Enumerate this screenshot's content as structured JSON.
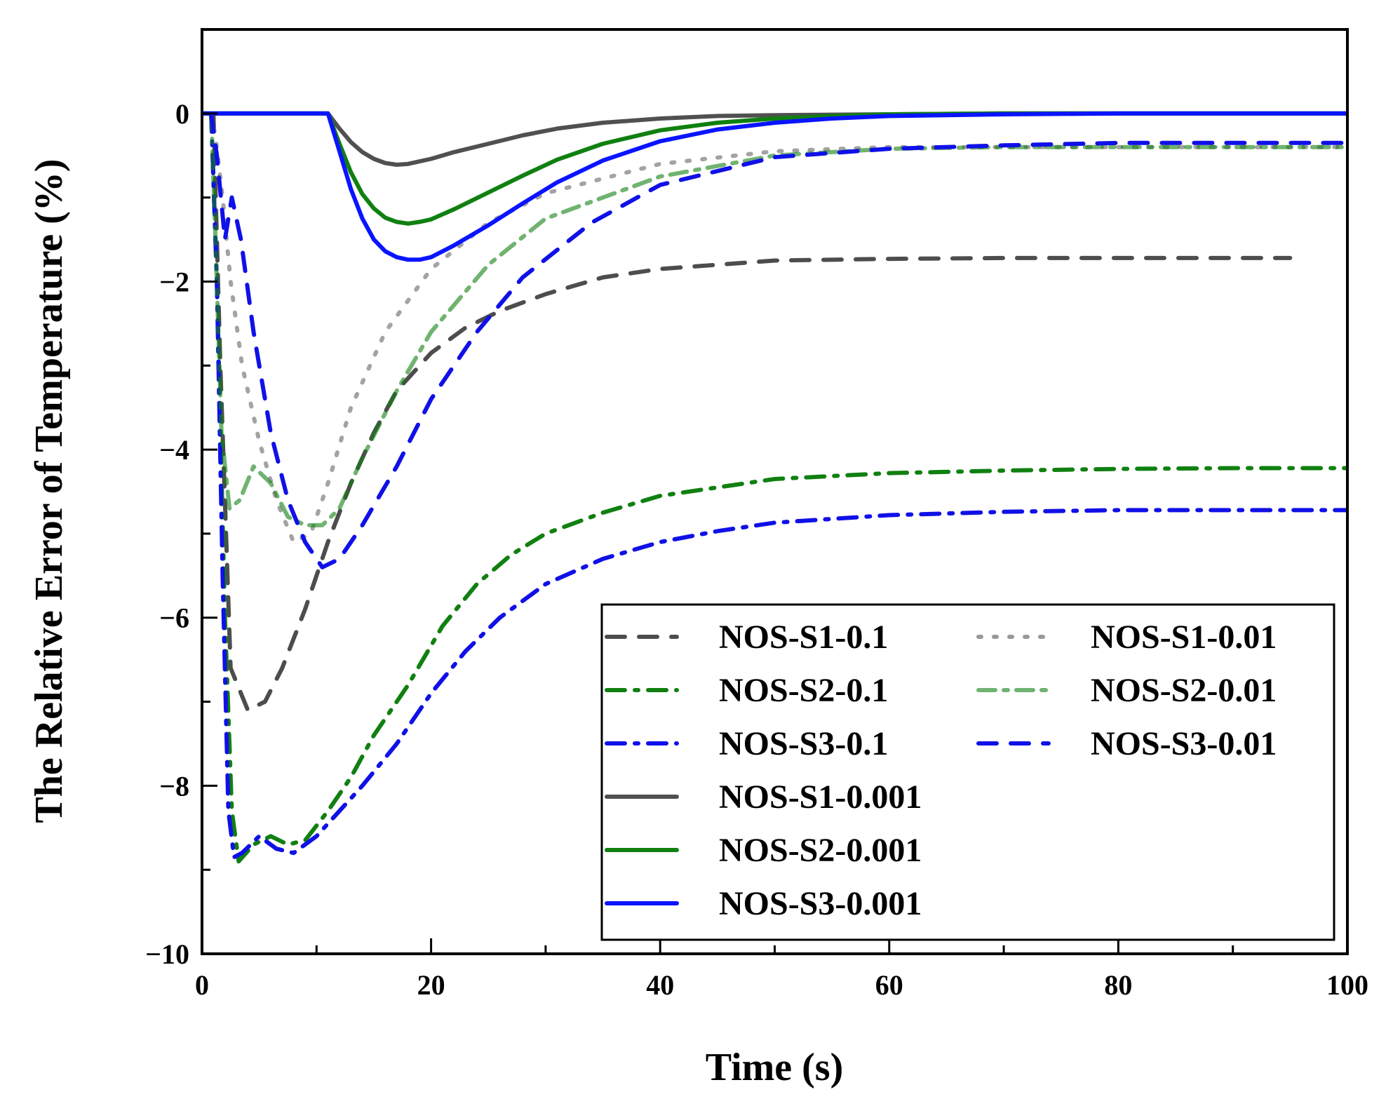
{
  "chart_data": {
    "type": "line",
    "title": "",
    "xlabel": "Time (s)",
    "ylabel": "The Relative Error of  Temperature (%)",
    "xlim": [
      0,
      100
    ],
    "ylim": [
      -10,
      1
    ],
    "xticks": [
      0,
      20,
      40,
      60,
      80,
      100
    ],
    "xtick_labels": [
      "0",
      "20",
      "40",
      "60",
      "80",
      "100"
    ],
    "yticks": [
      0,
      -2,
      -4,
      -6,
      -8,
      -10
    ],
    "ytick_labels": [
      "0",
      "−2",
      "−4",
      "−6",
      "−8",
      "−10"
    ],
    "grid": false,
    "legend_position": "bottom-right",
    "series": [
      {
        "name": "NOS-S1-0.1",
        "color": "#4d4d4d",
        "style": "dash",
        "width": 6,
        "x": [
          1,
          1.6,
          2.5,
          4,
          5.5,
          7,
          9,
          11,
          13,
          15,
          17,
          20,
          23,
          26,
          30,
          35,
          40,
          50,
          60,
          70,
          80,
          95
        ],
        "y": [
          0,
          -3,
          -6.6,
          -7.1,
          -7.0,
          -6.6,
          -5.9,
          -5.1,
          -4.4,
          -3.8,
          -3.3,
          -2.85,
          -2.55,
          -2.35,
          -2.15,
          -1.95,
          -1.85,
          -1.75,
          -1.73,
          -1.72,
          -1.72,
          -1.72
        ]
      },
      {
        "name": "NOS-S2-0.1",
        "color": "#108010",
        "style": "dashdot",
        "width": 6,
        "x": [
          0.8,
          1.3,
          2,
          2.6,
          3.2,
          4.5,
          6,
          7.5,
          9,
          11,
          13,
          15,
          18,
          21,
          24,
          27,
          30,
          35,
          40,
          45,
          50,
          60,
          70,
          80,
          90,
          100
        ],
        "y": [
          0,
          -2,
          -6,
          -8.3,
          -8.9,
          -8.7,
          -8.6,
          -8.7,
          -8.65,
          -8.3,
          -7.9,
          -7.4,
          -6.8,
          -6.1,
          -5.6,
          -5.25,
          -5.0,
          -4.75,
          -4.55,
          -4.45,
          -4.35,
          -4.28,
          -4.25,
          -4.23,
          -4.22,
          -4.22
        ]
      },
      {
        "name": "NOS-S3-0.1",
        "color": "#1010e8",
        "style": "dashdot",
        "width": 6,
        "x": [
          0.8,
          1.3,
          1.8,
          2.3,
          2.8,
          3.5,
          5,
          6.5,
          8,
          10,
          12,
          14,
          17,
          20,
          23,
          26,
          30,
          35,
          40,
          45,
          50,
          60,
          70,
          80,
          90,
          100
        ],
        "y": [
          0,
          -2,
          -5.5,
          -8.3,
          -8.85,
          -8.8,
          -8.6,
          -8.75,
          -8.8,
          -8.6,
          -8.3,
          -8.0,
          -7.5,
          -6.9,
          -6.4,
          -6.0,
          -5.6,
          -5.3,
          -5.1,
          -4.97,
          -4.87,
          -4.78,
          -4.74,
          -4.72,
          -4.72,
          -4.72
        ]
      },
      {
        "name": "NOS-S1-0.01",
        "color": "#999999",
        "style": "dot",
        "width": 6,
        "x": [
          0.8,
          1.2,
          1.8,
          2.5,
          3.5,
          5,
          6.5,
          8,
          9.5,
          11,
          13,
          16,
          20,
          25,
          30,
          40,
          50,
          60,
          70,
          80,
          90,
          100
        ],
        "y": [
          0,
          -0.3,
          -1.0,
          -2.0,
          -3.0,
          -3.9,
          -4.6,
          -5.1,
          -5.0,
          -4.4,
          -3.5,
          -2.6,
          -1.85,
          -1.3,
          -0.95,
          -0.6,
          -0.45,
          -0.4,
          -0.4,
          -0.4,
          -0.4,
          -0.4
        ]
      },
      {
        "name": "NOS-S2-0.01",
        "color": "#108010",
        "style": "dashdot-light",
        "width": 6,
        "x": [
          0.8,
          1.2,
          1.7,
          2.4,
          3.3,
          4.5,
          6,
          7.5,
          9,
          10.5,
          12,
          14,
          17,
          20,
          25,
          30,
          40,
          50,
          60,
          70,
          80,
          90,
          100
        ],
        "y": [
          0,
          -1.6,
          -3.8,
          -4.7,
          -4.6,
          -4.2,
          -4.4,
          -4.8,
          -4.9,
          -4.9,
          -4.7,
          -4.1,
          -3.3,
          -2.6,
          -1.8,
          -1.25,
          -0.75,
          -0.5,
          -0.42,
          -0.4,
          -0.4,
          -0.4,
          -0.4
        ]
      },
      {
        "name": "NOS-S3-0.01",
        "color": "#1010e8",
        "style": "dash",
        "width": 6,
        "x": [
          0.8,
          1.3,
          2.0,
          2.6,
          3.4,
          4.5,
          6,
          7.5,
          9,
          10.5,
          12,
          14,
          17,
          20,
          24,
          28,
          34,
          40,
          50,
          60,
          70,
          80,
          90,
          100
        ],
        "y": [
          0,
          -0.5,
          -1.5,
          -1.0,
          -1.5,
          -2.6,
          -3.8,
          -4.6,
          -5.1,
          -5.4,
          -5.3,
          -4.9,
          -4.2,
          -3.4,
          -2.6,
          -1.95,
          -1.3,
          -0.85,
          -0.52,
          -0.42,
          -0.38,
          -0.35,
          -0.35,
          -0.35
        ]
      },
      {
        "name": "NOS-S1-0.001",
        "color": "#505050",
        "style": "solid",
        "width": 6,
        "x": [
          0,
          11,
          12,
          13,
          14,
          15,
          16,
          17,
          18,
          20,
          22,
          25,
          28,
          31,
          35,
          40,
          45,
          50,
          60,
          70,
          80,
          90,
          100
        ],
        "y": [
          0,
          0,
          -0.18,
          -0.34,
          -0.46,
          -0.54,
          -0.59,
          -0.61,
          -0.6,
          -0.54,
          -0.46,
          -0.36,
          -0.26,
          -0.18,
          -0.11,
          -0.06,
          -0.03,
          -0.02,
          -0.01,
          0,
          0,
          0,
          0
        ]
      },
      {
        "name": "NOS-S2-0.001",
        "color": "#108010",
        "style": "solid",
        "width": 6,
        "x": [
          0,
          11,
          12,
          13,
          14,
          15,
          16,
          17,
          18,
          19,
          20,
          22,
          25,
          28,
          31,
          35,
          40,
          45,
          50,
          55,
          60,
          70,
          80,
          90,
          100
        ],
        "y": [
          0,
          0,
          -0.36,
          -0.7,
          -0.96,
          -1.13,
          -1.24,
          -1.29,
          -1.31,
          -1.29,
          -1.26,
          -1.14,
          -0.94,
          -0.74,
          -0.55,
          -0.36,
          -0.2,
          -0.11,
          -0.06,
          -0.03,
          -0.01,
          0,
          0,
          0,
          0
        ]
      },
      {
        "name": "NOS-S3-0.001",
        "color": "#0a14ff",
        "style": "solid",
        "width": 6,
        "x": [
          0,
          11,
          12,
          13,
          14,
          15,
          16,
          17,
          18,
          19,
          20,
          22,
          25,
          28,
          31,
          35,
          40,
          45,
          50,
          55,
          60,
          70,
          80,
          90,
          100
        ],
        "y": [
          0,
          0,
          -0.45,
          -0.9,
          -1.25,
          -1.5,
          -1.64,
          -1.71,
          -1.74,
          -1.74,
          -1.71,
          -1.57,
          -1.33,
          -1.07,
          -0.82,
          -0.56,
          -0.33,
          -0.19,
          -0.11,
          -0.06,
          -0.03,
          -0.01,
          0,
          0,
          0
        ]
      }
    ]
  }
}
